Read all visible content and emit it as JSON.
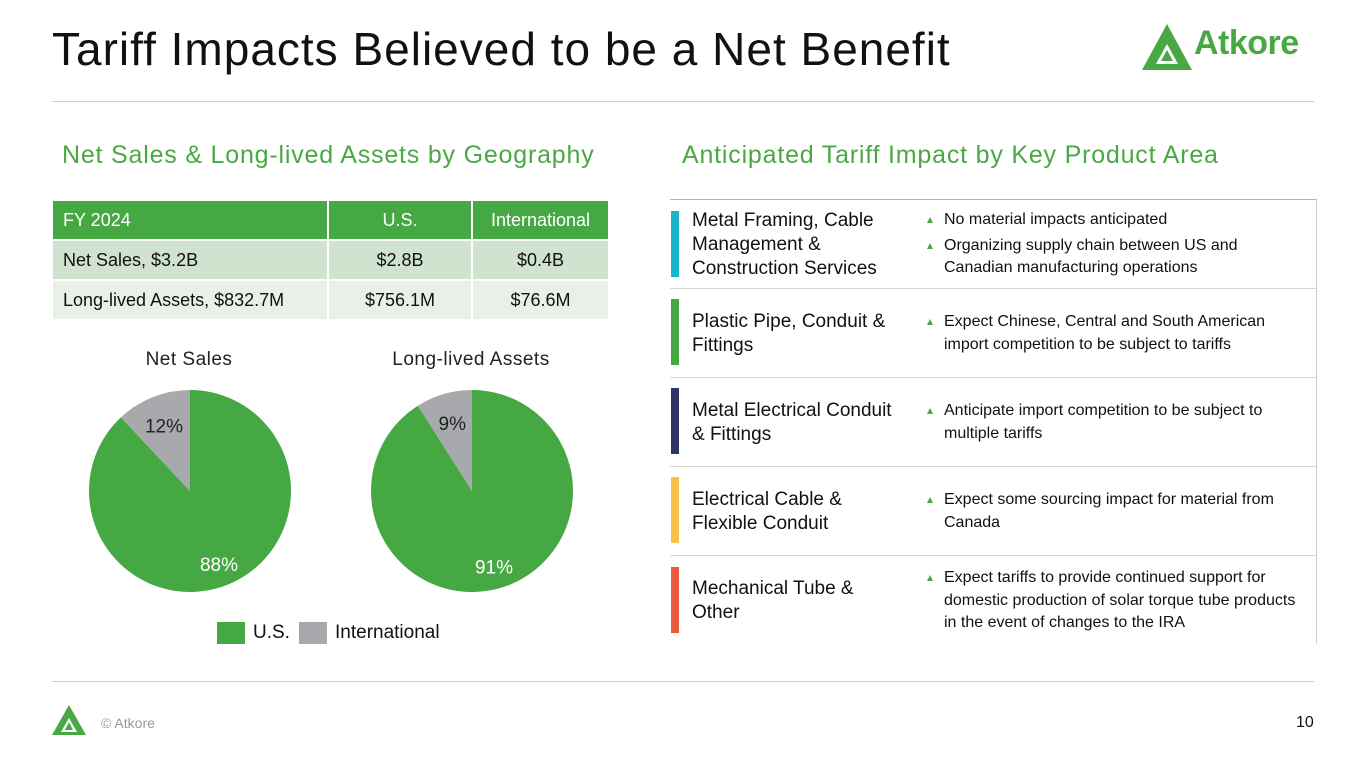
{
  "slide": {
    "title": "Tariff Impacts Believed to be a Net Benefit",
    "logo_text": "Atkore",
    "copyright": "© Atkore",
    "page_number": "10",
    "brand_green": "#4aa844"
  },
  "left_section": {
    "title": "Net Sales & Long-lived Assets by Geography",
    "table": {
      "headers": [
        "FY 2024",
        "U.S.",
        "International"
      ],
      "rows": [
        [
          "Net Sales, $3.2B",
          "$2.8B",
          "$0.4B"
        ],
        [
          "Long-lived Assets, $832.7M",
          "$756.1M",
          "$76.6M"
        ]
      ]
    }
  },
  "chart_data": [
    {
      "type": "pie",
      "title": "Net Sales",
      "labels": [
        "U.S.",
        "International"
      ],
      "values": [
        88,
        12
      ],
      "value_labels": [
        "88%",
        "12%"
      ],
      "colors": [
        "#46a843",
        "#a7a9ac"
      ]
    },
    {
      "type": "pie",
      "title": "Long-lived Assets",
      "labels": [
        "U.S.",
        "International"
      ],
      "values": [
        91,
        9
      ],
      "value_labels": [
        "91%",
        "9%"
      ],
      "colors": [
        "#46a843",
        "#a7a9ac"
      ]
    }
  ],
  "legend": [
    {
      "label": "U.S.",
      "color": "#46a843"
    },
    {
      "label": "International",
      "color": "#a7a9ac"
    }
  ],
  "right_section": {
    "title": "Anticipated Tariff Impact by Key Product Area",
    "rows": [
      {
        "name": "Metal Framing, Cable Management & Construction Services",
        "color": "#17b5c6",
        "bullets": [
          "No material impacts anticipated",
          "Organizing supply chain between US and Canadian manufacturing operations"
        ]
      },
      {
        "name": "Plastic Pipe, Conduit & Fittings",
        "color": "#46a843",
        "bullets": [
          "Expect Chinese, Central and South American import competition to be subject to tariffs"
        ]
      },
      {
        "name": "Metal Electrical Conduit & Fittings",
        "color": "#2e3564",
        "bullets": [
          "Anticipate import competition to be subject to multiple tariffs"
        ]
      },
      {
        "name": "Electrical Cable & Flexible Conduit",
        "color": "#f8c14a",
        "bullets": [
          "Expect some sourcing impact for material from Canada"
        ]
      },
      {
        "name": "Mechanical Tube & Other",
        "color": "#ea5a3f",
        "bullets": [
          "Expect tariffs to provide continued support for domestic production of solar torque tube products in the event of changes to the IRA"
        ]
      }
    ]
  }
}
